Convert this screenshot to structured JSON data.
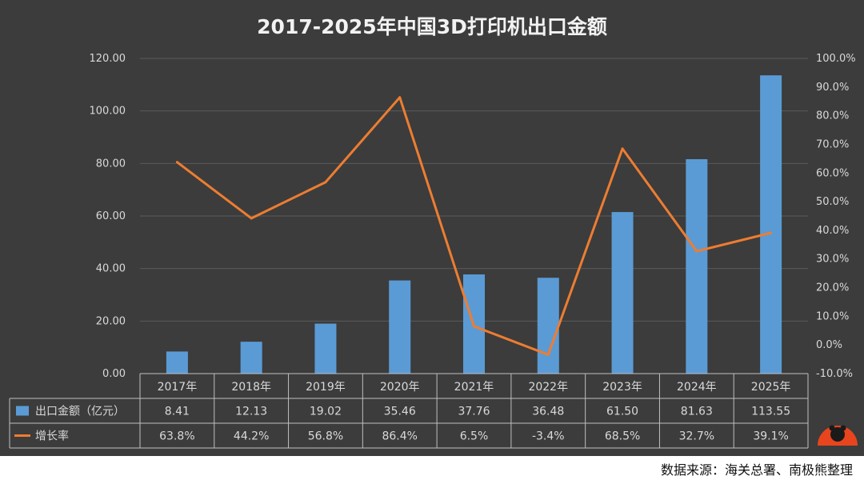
{
  "chart_data": {
    "type": "bar",
    "title": "2017-2025年中国3D打印机出口金额",
    "categories": [
      "2017年",
      "2018年",
      "2019年",
      "2020年",
      "2021年",
      "2022年",
      "2023年",
      "2024年",
      "2025年"
    ],
    "series": [
      {
        "name": "出口金额（亿元）",
        "type": "bar",
        "axis": "left",
        "values": [
          8.41,
          12.13,
          19.02,
          35.46,
          37.76,
          36.48,
          61.5,
          81.63,
          113.55
        ],
        "table_labels": [
          "8.41",
          "12.13",
          "19.02",
          "35.46",
          "37.76",
          "36.48",
          "61.50",
          "81.63",
          "113.55"
        ]
      },
      {
        "name": "增长率",
        "type": "line",
        "axis": "right",
        "values": [
          63.8,
          44.2,
          56.8,
          86.4,
          6.5,
          -3.4,
          68.5,
          32.7,
          39.1
        ],
        "table_labels": [
          "63.8%",
          "44.2%",
          "56.8%",
          "86.4%",
          "6.5%",
          "-3.4%",
          "68.5%",
          "32.7%",
          "39.1%"
        ]
      }
    ],
    "y_left": {
      "range": [
        0,
        120
      ],
      "ticks": [
        0,
        20,
        40,
        60,
        80,
        100,
        120
      ],
      "tick_labels": [
        "0.00",
        "20.00",
        "40.00",
        "60.00",
        "80.00",
        "100.00",
        "120.00"
      ]
    },
    "y_right": {
      "range": [
        -10,
        100
      ],
      "ticks": [
        -10,
        0,
        10,
        20,
        30,
        40,
        50,
        60,
        70,
        80,
        90,
        100
      ],
      "tick_labels": [
        "-10.0%",
        "0.0%",
        "10.0%",
        "20.0%",
        "30.0%",
        "40.0%",
        "50.0%",
        "60.0%",
        "70.0%",
        "80.0%",
        "90.0%",
        "100.0%"
      ]
    },
    "grid": true,
    "legend": "data table"
  },
  "source_note": "数据来源：海关总署、南极熊整理",
  "colors": {
    "background": "#3c3c3c",
    "bar": "#5b9bd5",
    "line": "#ed7d31",
    "text": "#d9d9d9",
    "grid": "#5a5a5a"
  },
  "logo_text": "南极熊"
}
